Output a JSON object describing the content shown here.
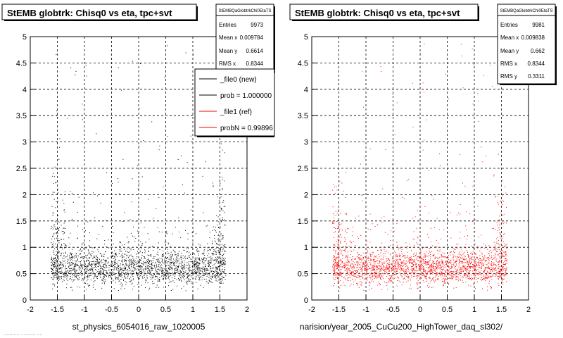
{
  "left": {
    "title": "StEMB globtrk: Chisq0 vs eta, tpc+svt",
    "xlabel": "st_physics_6054016_raw_1020005",
    "stats": {
      "name": "StEMBQaGlobtrkChi0EtaTS",
      "rows": [
        {
          "label": "Entries",
          "value": "9973"
        },
        {
          "label": "Mean x",
          "value": "0.009784"
        },
        {
          "label": "Mean y",
          "value": "0.6614"
        },
        {
          "label": "RMS x",
          "value": "0.8344"
        }
      ]
    },
    "legend": [
      {
        "label": "_file0 (new)",
        "color": "#000000"
      },
      {
        "label": "prob = 1.000000",
        "color": "#000000"
      },
      {
        "label": "_file1 (ref)",
        "color": "#ff0000"
      },
      {
        "label": "probN = 0.99896",
        "color": "#ff0000"
      }
    ]
  },
  "right": {
    "title": "StEMB globtrk: Chisq0 vs eta, tpc+svt",
    "xlabel": "narision/year_2005_CuCu200_HighTower_daq_sl302/",
    "stats": {
      "name": "StEMBQaGlobtrkChi0EtaTS",
      "rows": [
        {
          "label": "Entries",
          "value": "9981"
        },
        {
          "label": "Mean x",
          "value": "0.009838"
        },
        {
          "label": "Mean y",
          "value": "0.662"
        },
        {
          "label": "RMS x",
          "value": "0.8344"
        },
        {
          "label": "RMS y",
          "value": "0.3311"
        }
      ]
    }
  },
  "footer_fragment": "........... . ......... ....",
  "chart_data": [
    {
      "type": "scatter",
      "title": "StEMB globtrk: Chisq0 vs eta, tpc+svt",
      "xlabel": "st_physics_6054016_raw_1020005",
      "ylabel": "",
      "xlim": [
        -2,
        2
      ],
      "ylim": [
        0,
        5
      ],
      "xticks": [
        "-2",
        "-1.5",
        "-1",
        "-0.5",
        "0",
        "0.5",
        "1",
        "1.5",
        "2"
      ],
      "yticks": [
        "0",
        "0.5",
        "1",
        "1.5",
        "2",
        "2.5",
        "3",
        "3.5",
        "4",
        "4.5",
        "5"
      ],
      "grid": true,
      "series": [
        {
          "color": "#000000",
          "entries": 9973,
          "mean_x": 0.009784,
          "mean_y": 0.6614,
          "rms_x": 0.8344
        }
      ]
    },
    {
      "type": "scatter",
      "title": "StEMB globtrk: Chisq0 vs eta, tpc+svt",
      "xlabel": "narision/year_2005_CuCu200_HighTower_daq_sl302/",
      "ylabel": "",
      "xlim": [
        -2,
        2
      ],
      "ylim": [
        0,
        5
      ],
      "xticks": [
        "-2",
        "-1.5",
        "-1",
        "-0.5",
        "0",
        "0.5",
        "1",
        "1.5",
        "2"
      ],
      "yticks": [
        "0",
        "0.5",
        "1",
        "1.5",
        "2",
        "2.5",
        "3",
        "3.5",
        "4",
        "4.5",
        "5"
      ],
      "grid": true,
      "series": [
        {
          "color": "#ff0000",
          "entries": 9981,
          "mean_x": 0.009838,
          "mean_y": 0.662,
          "rms_x": 0.8344,
          "rms_y": 0.3311
        }
      ]
    }
  ]
}
